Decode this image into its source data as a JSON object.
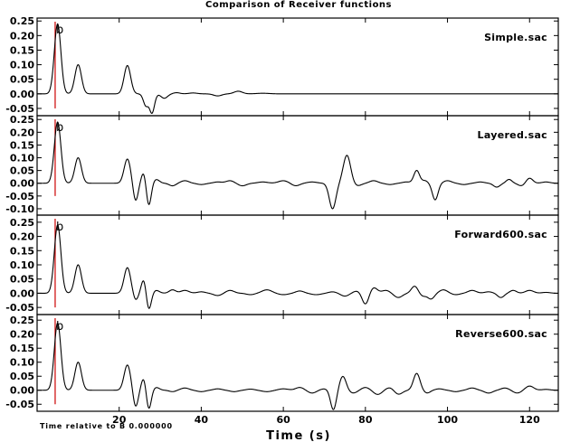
{
  "chart_data": {
    "type": "line",
    "title": "Comparison of Receiver functions",
    "xlabel": "Time (s)",
    "note": "Time relative to B 0.000000",
    "xlim": [
      0,
      127
    ],
    "x_ticks": [
      "20",
      "40",
      "60",
      "80",
      "100",
      "120"
    ],
    "x_tick_values": [
      20,
      40,
      60,
      80,
      100,
      120
    ],
    "marker": {
      "label": "b",
      "x": 4.4
    },
    "trace_color": "#000000",
    "marker_color": "#cc0000",
    "panels": [
      {
        "name": "Simple.sac",
        "ylim": [
          -0.075,
          0.26
        ],
        "y_ticks": [
          "0.25",
          "0.20",
          "0.15",
          "0.10",
          "0.05",
          "0.00",
          "-0.05"
        ],
        "y_tick_values": [
          0.25,
          0.2,
          0.15,
          0.1,
          0.05,
          0.0,
          -0.05
        ],
        "peaks": [
          [
            5,
            0.24,
            0.8
          ],
          [
            10,
            0.1,
            0.8
          ],
          [
            22,
            0.097,
            0.8
          ],
          [
            26.5,
            -0.04,
            0.6
          ],
          [
            28,
            -0.065,
            0.6
          ],
          [
            31,
            -0.015,
            0.8
          ],
          [
            34,
            0.004,
            0.8
          ],
          [
            38,
            0.003,
            1
          ],
          [
            44,
            -0.007,
            1
          ],
          [
            49,
            0.009,
            1
          ],
          [
            55,
            0.002,
            1.5
          ]
        ]
      },
      {
        "name": "Layered.sac",
        "ylim": [
          -0.125,
          0.265
        ],
        "y_ticks": [
          "0.25",
          "0.20",
          "0.15",
          "0.10",
          "0.05",
          "0.00",
          "-0.05",
          "-0.10"
        ],
        "y_tick_values": [
          0.25,
          0.2,
          0.15,
          0.1,
          0.05,
          0.0,
          -0.05,
          -0.1
        ],
        "peaks": [
          [
            5,
            0.24,
            0.8
          ],
          [
            10,
            0.1,
            0.8
          ],
          [
            22,
            0.095,
            0.8
          ],
          [
            24,
            -0.07,
            0.6
          ],
          [
            26,
            0.045,
            0.6
          ],
          [
            27.2,
            -0.09,
            0.6
          ],
          [
            29,
            0.015,
            0.8
          ],
          [
            33,
            -0.01,
            0.8
          ],
          [
            36,
            0.01,
            1
          ],
          [
            40,
            -0.005,
            1
          ],
          [
            44,
            0.005,
            1
          ],
          [
            47,
            0.01,
            1
          ],
          [
            50,
            -0.01,
            1
          ],
          [
            55,
            0.005,
            1.2
          ],
          [
            60,
            0.01,
            1.2
          ],
          [
            63,
            -0.01,
            1
          ],
          [
            67,
            0.005,
            1.2
          ],
          [
            72,
            -0.1,
            0.8
          ],
          [
            75.5,
            0.11,
            0.9
          ],
          [
            78,
            -0.01,
            1
          ],
          [
            82,
            0.01,
            1
          ],
          [
            86,
            -0.005,
            1
          ],
          [
            90,
            0.005,
            1
          ],
          [
            92.5,
            0.05,
            0.7
          ],
          [
            94.5,
            0.01,
            0.7
          ],
          [
            97,
            -0.065,
            0.7
          ],
          [
            100,
            0.01,
            1
          ],
          [
            104,
            -0.005,
            1
          ],
          [
            108,
            0.005,
            1
          ],
          [
            112,
            -0.015,
            0.8
          ],
          [
            115,
            0.015,
            0.7
          ],
          [
            118,
            -0.01,
            0.8
          ],
          [
            120,
            0.02,
            0.8
          ],
          [
            124,
            0.005,
            1
          ]
        ]
      },
      {
        "name": "Forward600.sac",
        "ylim": [
          -0.075,
          0.275
        ],
        "y_ticks": [
          "0.25",
          "0.20",
          "0.15",
          "0.10",
          "0.05",
          "0.00",
          "-0.05"
        ],
        "y_tick_values": [
          0.25,
          0.2,
          0.15,
          0.1,
          0.05,
          0.0,
          -0.05
        ],
        "peaks": [
          [
            5,
            0.24,
            0.8
          ],
          [
            10,
            0.1,
            0.8
          ],
          [
            22,
            0.09,
            0.8
          ],
          [
            24,
            -0.025,
            0.6
          ],
          [
            26,
            0.05,
            0.6
          ],
          [
            27.2,
            -0.06,
            0.6
          ],
          [
            29,
            0.01,
            0.8
          ],
          [
            33,
            0.012,
            0.8
          ],
          [
            36,
            0.01,
            1
          ],
          [
            40,
            0.005,
            1
          ],
          [
            44,
            -0.008,
            1
          ],
          [
            47,
            0.01,
            1
          ],
          [
            52,
            -0.005,
            1
          ],
          [
            56,
            0.012,
            1.2
          ],
          [
            60,
            -0.005,
            1.2
          ],
          [
            64,
            0.008,
            1
          ],
          [
            68,
            -0.005,
            1.2
          ],
          [
            72,
            0.005,
            1
          ],
          [
            75,
            -0.01,
            1
          ],
          [
            78,
            0.008,
            1
          ],
          [
            80,
            -0.04,
            0.8
          ],
          [
            82,
            0.02,
            0.9
          ],
          [
            85,
            0.01,
            1
          ],
          [
            88,
            -0.015,
            1
          ],
          [
            92,
            0.025,
            0.8
          ],
          [
            94,
            -0.01,
            0.8
          ],
          [
            96,
            -0.02,
            0.8
          ],
          [
            99,
            0.012,
            1
          ],
          [
            102,
            -0.005,
            1
          ],
          [
            106,
            0.01,
            1
          ],
          [
            110,
            0.005,
            1
          ],
          [
            113,
            -0.015,
            0.8
          ],
          [
            116,
            0.01,
            0.8
          ],
          [
            120,
            0.01,
            1
          ],
          [
            124,
            0.003,
            1
          ]
        ]
      },
      {
        "name": "Reverse600.sac",
        "ylim": [
          -0.075,
          0.27
        ],
        "y_ticks": [
          "0.25",
          "0.20",
          "0.15",
          "0.10",
          "0.05",
          "0.00",
          "-0.05"
        ],
        "y_tick_values": [
          0.25,
          0.2,
          0.15,
          0.1,
          0.05,
          0.0,
          -0.05
        ],
        "peaks": [
          [
            5,
            0.24,
            0.8
          ],
          [
            10,
            0.1,
            0.8
          ],
          [
            22,
            0.09,
            0.8
          ],
          [
            24,
            -0.06,
            0.6
          ],
          [
            26,
            0.045,
            0.6
          ],
          [
            27.2,
            -0.07,
            0.6
          ],
          [
            29,
            0.01,
            0.8
          ],
          [
            33,
            -0.005,
            0.8
          ],
          [
            36,
            0.008,
            1
          ],
          [
            40,
            -0.005,
            1
          ],
          [
            44,
            0.005,
            1
          ],
          [
            48,
            -0.005,
            1
          ],
          [
            52,
            0.004,
            1
          ],
          [
            56,
            -0.005,
            1.2
          ],
          [
            60,
            0.005,
            1.2
          ],
          [
            64,
            0.01,
            1
          ],
          [
            67,
            -0.01,
            1
          ],
          [
            70,
            0.005,
            1
          ],
          [
            72.2,
            -0.07,
            0.7
          ],
          [
            74.5,
            0.05,
            0.8
          ],
          [
            77,
            -0.01,
            1
          ],
          [
            80,
            0.01,
            1
          ],
          [
            83,
            -0.015,
            1
          ],
          [
            86,
            0.01,
            1
          ],
          [
            88,
            -0.015,
            1
          ],
          [
            92.5,
            0.06,
            0.8
          ],
          [
            95,
            -0.01,
            0.8
          ],
          [
            98,
            0.005,
            1
          ],
          [
            102,
            -0.005,
            1
          ],
          [
            106,
            0.008,
            1
          ],
          [
            110,
            -0.01,
            1
          ],
          [
            114,
            0.008,
            1
          ],
          [
            117,
            -0.01,
            1
          ],
          [
            120,
            0.015,
            1
          ],
          [
            124,
            0.003,
            1
          ]
        ]
      }
    ]
  }
}
